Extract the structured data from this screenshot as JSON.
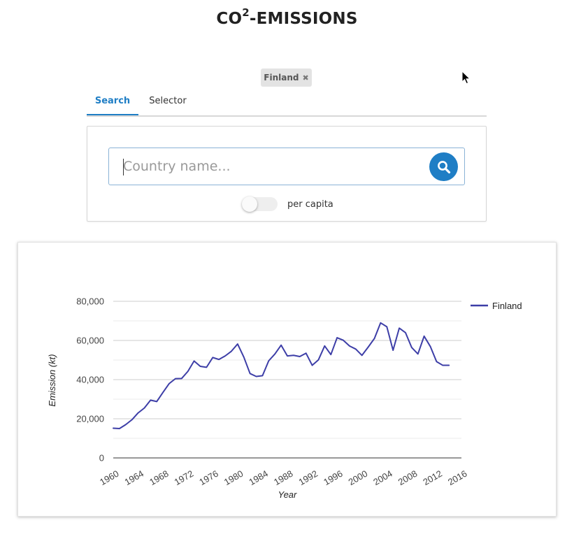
{
  "header": {
    "title_main": "CO",
    "title_sup": "2",
    "title_rest": "-EMISSIONS"
  },
  "selected_countries": [
    {
      "label": "Finland",
      "remove_icon": "close-icon"
    }
  ],
  "tabs": [
    {
      "label": "Search",
      "active": true
    },
    {
      "label": "Selector",
      "active": false
    }
  ],
  "search": {
    "placeholder": "Country name...",
    "value": "",
    "button_icon": "search-icon"
  },
  "per_capita": {
    "label": "per capita",
    "enabled": false
  },
  "colors": {
    "accent": "#1f7ec5",
    "series_finland": "#3d3ea7",
    "gridline": "#cccccc"
  },
  "chart_data": {
    "type": "line",
    "title": "",
    "xlabel": "Year",
    "ylabel": "Emission (kt)",
    "xlim": [
      1960,
      2016
    ],
    "ylim": [
      0,
      80000
    ],
    "x_ticks": [
      "1960",
      "1964",
      "1968",
      "1972",
      "1976",
      "1980",
      "1984",
      "1988",
      "1992",
      "1996",
      "2000",
      "2004",
      "2008",
      "2012",
      "2016"
    ],
    "y_ticks": [
      "0",
      "20,000",
      "40,000",
      "60,000",
      "80,000"
    ],
    "grid": true,
    "legend_position": "right",
    "series": [
      {
        "name": "Finland",
        "x": [
          1960,
          1961,
          1962,
          1963,
          1964,
          1965,
          1966,
          1967,
          1968,
          1969,
          1970,
          1971,
          1972,
          1973,
          1974,
          1975,
          1976,
          1977,
          1978,
          1979,
          1980,
          1981,
          1982,
          1983,
          1984,
          1985,
          1986,
          1987,
          1988,
          1989,
          1990,
          1991,
          1992,
          1993,
          1994,
          1995,
          1996,
          1997,
          1998,
          1999,
          2000,
          2001,
          2002,
          2003,
          2004,
          2005,
          2006,
          2007,
          2008,
          2009,
          2010,
          2011,
          2012,
          2013,
          2014
        ],
        "values": [
          15200,
          15000,
          17000,
          19500,
          23000,
          25500,
          29500,
          28800,
          33500,
          38000,
          40500,
          40600,
          44200,
          49500,
          46800,
          46300,
          51300,
          50300,
          52100,
          54500,
          58200,
          51500,
          43100,
          41600,
          42000,
          49600,
          53100,
          57600,
          52100,
          52400,
          51800,
          53500,
          47300,
          50100,
          57200,
          52800,
          61400,
          60100,
          57200,
          55600,
          52400,
          56600,
          61000,
          69000,
          67000,
          55000,
          66300,
          64000,
          56400,
          53100,
          62200,
          56900,
          49200,
          47300,
          47300
        ]
      }
    ]
  }
}
